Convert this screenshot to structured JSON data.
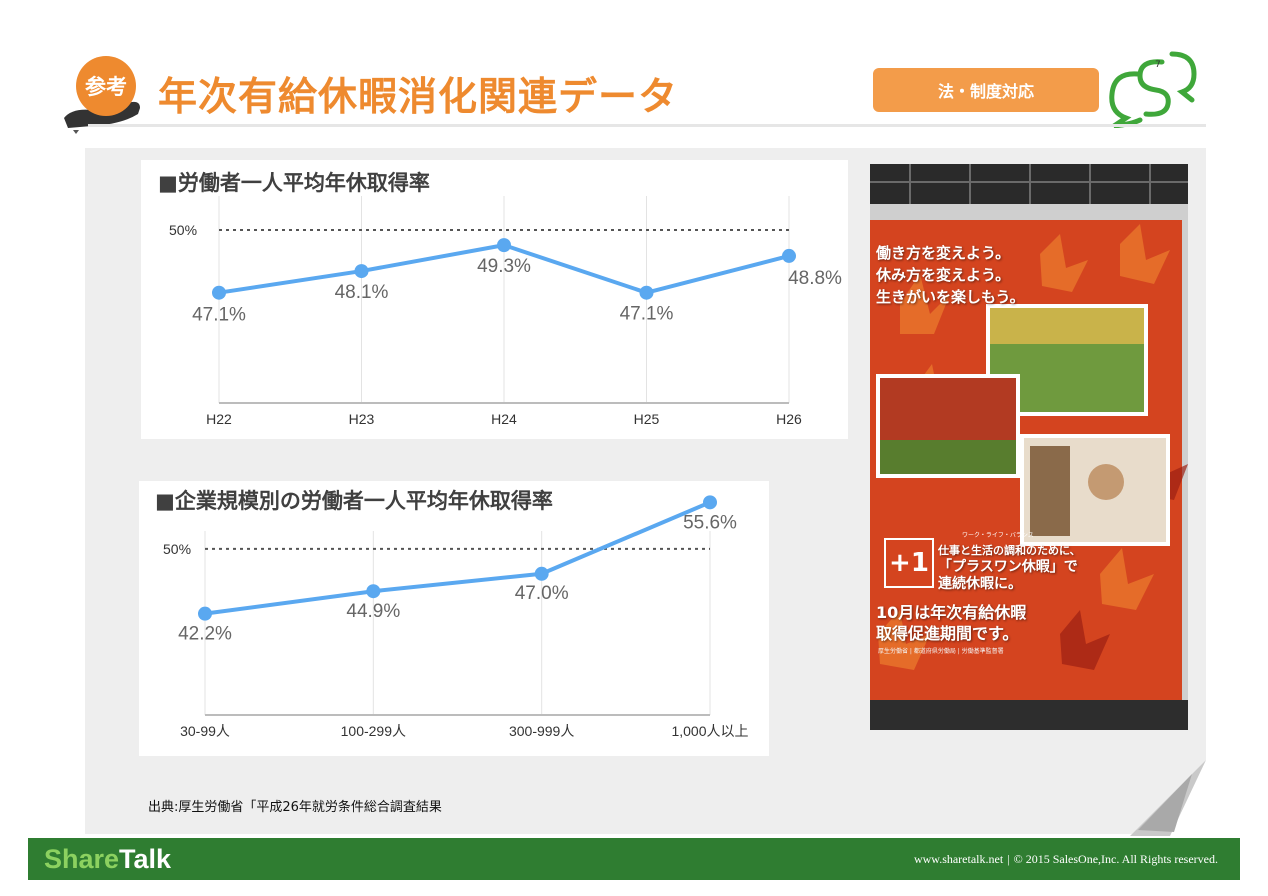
{
  "header": {
    "badge_label": "参考",
    "title": "年次有給休暇消化関連データ",
    "category_tag": "法・制度対応",
    "page_number": "7",
    "colors": {
      "accent": "#ee8a2f",
      "tag": "#f39c4a",
      "logo": "#3fa73a"
    },
    "icons": {
      "logo": "sharetalk-logo-icon",
      "badge": "hand-badge-icon"
    }
  },
  "chart_data": [
    {
      "type": "line",
      "title": "■労働者一人平均年休取得率",
      "categories": [
        "H22",
        "H23",
        "H24",
        "H25",
        "H26"
      ],
      "values": [
        47.1,
        48.1,
        49.3,
        47.1,
        48.8
      ],
      "data_labels": [
        "47.1%",
        "48.1%",
        "49.3%",
        "47.1%",
        "48.8%"
      ],
      "reference_line": {
        "value": 50,
        "label": "50%"
      },
      "ylim": [
        42,
        50.6
      ],
      "grid": "vertical",
      "line_color": "#5aa8f0",
      "xlabel": "",
      "ylabel": ""
    },
    {
      "type": "line",
      "title": "■企業規模別の労働者一人平均年休取得率",
      "categories": [
        "30-99人",
        "100-299人",
        "300-999人",
        "1,000人以上"
      ],
      "values": [
        42.2,
        44.9,
        47.0,
        55.6
      ],
      "data_labels": [
        "42.2%",
        "44.9%",
        "47.0%",
        "55.6%"
      ],
      "reference_line": {
        "value": 50,
        "label": "50%"
      },
      "ylim": [
        30,
        56
      ],
      "grid": "vertical",
      "line_color": "#5aa8f0",
      "xlabel": "",
      "ylabel": ""
    }
  ],
  "poster": {
    "slogan": [
      "働き方を変えよう。",
      "休み方を変えよう。",
      "生きがいを楽しもう。"
    ],
    "plus_one": "+1",
    "ruby": "ワーク・ライフ・バランス",
    "message": [
      "仕事と生活の調和のために、",
      "「プラスワン休暇」で",
      "連続休暇に。"
    ],
    "period": [
      "10月は年次有給休暇",
      "取得促進期間です。"
    ],
    "issuer": "厚生労働省 | 都道府県労働局 | 労働基準監督署"
  },
  "source_note": "出典:厚生労働省「平成26年就労条件総合調査結果",
  "footer": {
    "brand_share": "Share",
    "brand_talk": "Talk",
    "website": "www.sharetalk.net",
    "separator": "|",
    "copyright": "© 2015 SalesOne,Inc. All Rights reserved.",
    "color": "#2f7d31"
  }
}
